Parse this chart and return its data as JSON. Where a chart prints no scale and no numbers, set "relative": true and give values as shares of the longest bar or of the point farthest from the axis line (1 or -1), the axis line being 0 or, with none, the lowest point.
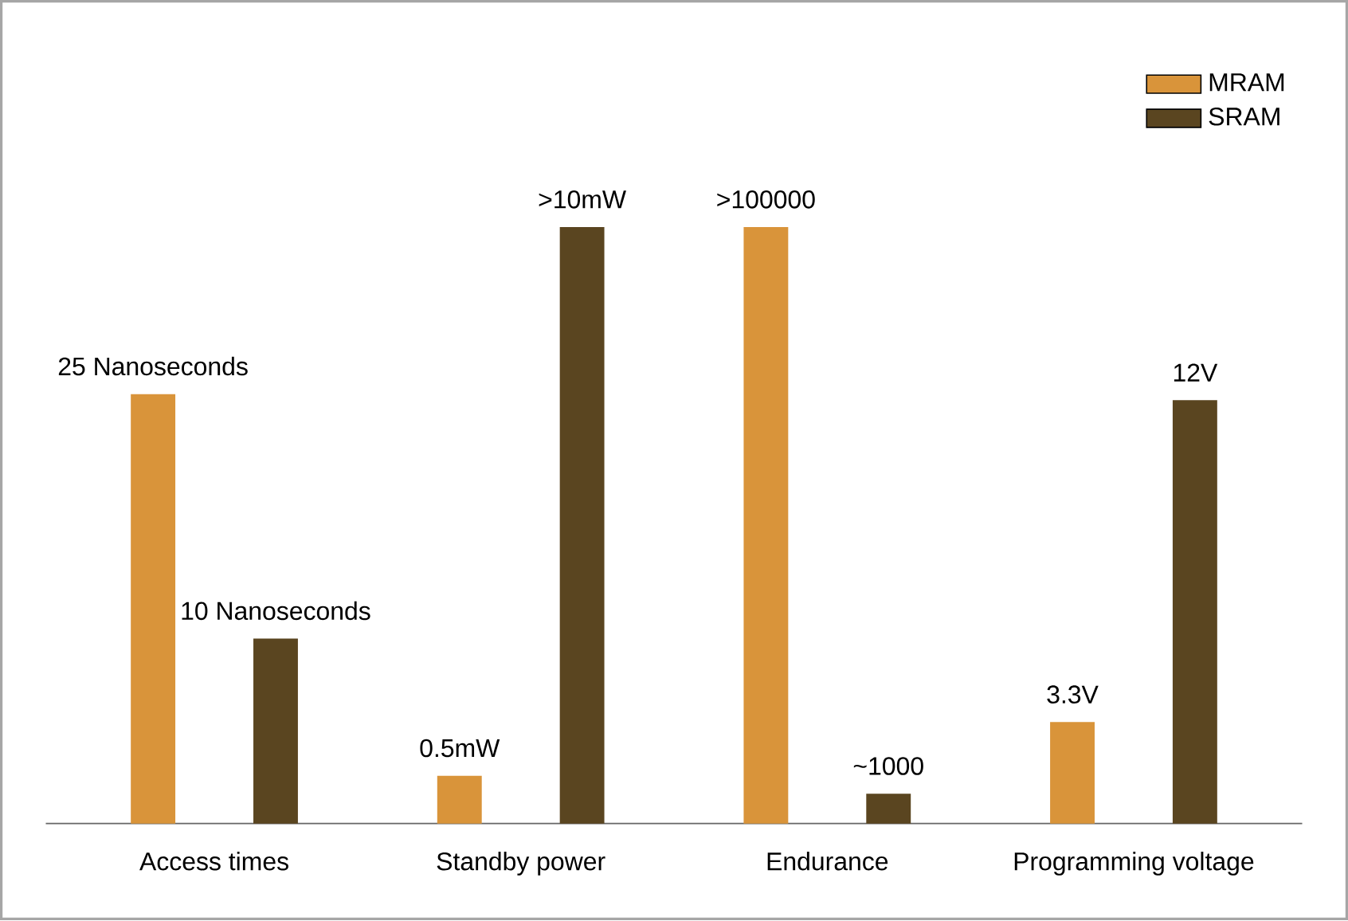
{
  "chart_data": {
    "type": "bar",
    "relative": true,
    "legend": "top right",
    "categories": [
      "Access times",
      "Standby power",
      "Endurance",
      "Programming voltage"
    ],
    "series": [
      {
        "name": "MRAM",
        "color": "#d9943a",
        "values": [
          0.72,
          0.08,
          1,
          0.17
        ]
      },
      {
        "name": "SRAM",
        "color": "#5a4520",
        "values": [
          0.31,
          1,
          0.05,
          0.71
        ]
      }
    ],
    "annotations": [
      "25 Nanoseconds",
      "10 Nanoseconds",
      "0.5mW",
      ">10mW",
      ">100000",
      "~1000",
      "3.3V",
      "12V"
    ]
  }
}
